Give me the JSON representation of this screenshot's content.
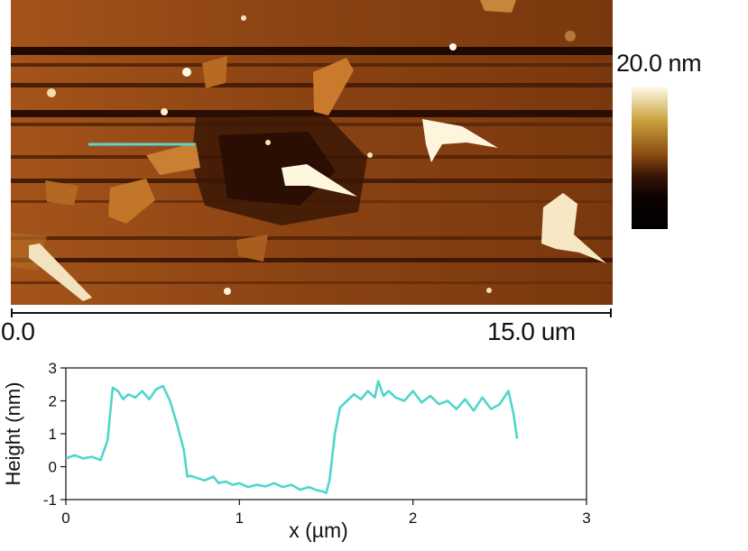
{
  "afm": {
    "colorbar_label": "20.0 nm",
    "scale_start": "0.0",
    "scale_end": "15.0 um",
    "line_color": "#5ad6cf"
  },
  "chart_data": {
    "type": "line",
    "xlabel": "x (µm)",
    "ylabel": "Height (nm)",
    "xlim": [
      0,
      3
    ],
    "ylim": [
      -1,
      3
    ],
    "xticks": [
      0,
      1,
      2,
      3
    ],
    "yticks": [
      -1,
      0,
      1,
      2,
      3
    ],
    "grid": false,
    "series": [
      {
        "color": "#4fd6cc",
        "x": [
          0.0,
          0.05,
          0.1,
          0.15,
          0.2,
          0.24,
          0.27,
          0.3,
          0.33,
          0.36,
          0.4,
          0.44,
          0.48,
          0.52,
          0.56,
          0.6,
          0.64,
          0.68,
          0.7,
          0.72,
          0.76,
          0.8,
          0.85,
          0.88,
          0.92,
          0.96,
          1.0,
          1.05,
          1.1,
          1.15,
          1.2,
          1.25,
          1.3,
          1.35,
          1.4,
          1.45,
          1.48,
          1.5,
          1.52,
          1.55,
          1.58,
          1.62,
          1.66,
          1.7,
          1.74,
          1.78,
          1.8,
          1.83,
          1.86,
          1.9,
          1.95,
          2.0,
          2.05,
          2.1,
          2.15,
          2.2,
          2.25,
          2.3,
          2.35,
          2.4,
          2.45,
          2.5,
          2.55,
          2.58,
          2.6
        ],
        "y": [
          0.25,
          0.35,
          0.25,
          0.3,
          0.2,
          0.8,
          2.4,
          2.3,
          2.05,
          2.2,
          2.1,
          2.3,
          2.05,
          2.35,
          2.45,
          2.0,
          1.3,
          0.5,
          -0.3,
          -0.28,
          -0.35,
          -0.42,
          -0.3,
          -0.5,
          -0.45,
          -0.55,
          -0.5,
          -0.62,
          -0.55,
          -0.6,
          -0.5,
          -0.62,
          -0.55,
          -0.7,
          -0.62,
          -0.72,
          -0.75,
          -0.8,
          -0.4,
          1.0,
          1.8,
          2.0,
          2.2,
          2.05,
          2.3,
          2.1,
          2.6,
          2.15,
          2.3,
          2.1,
          2.0,
          2.3,
          1.95,
          2.15,
          1.9,
          2.0,
          1.75,
          2.05,
          1.7,
          2.1,
          1.75,
          1.9,
          2.3,
          1.6,
          0.85
        ]
      }
    ]
  }
}
